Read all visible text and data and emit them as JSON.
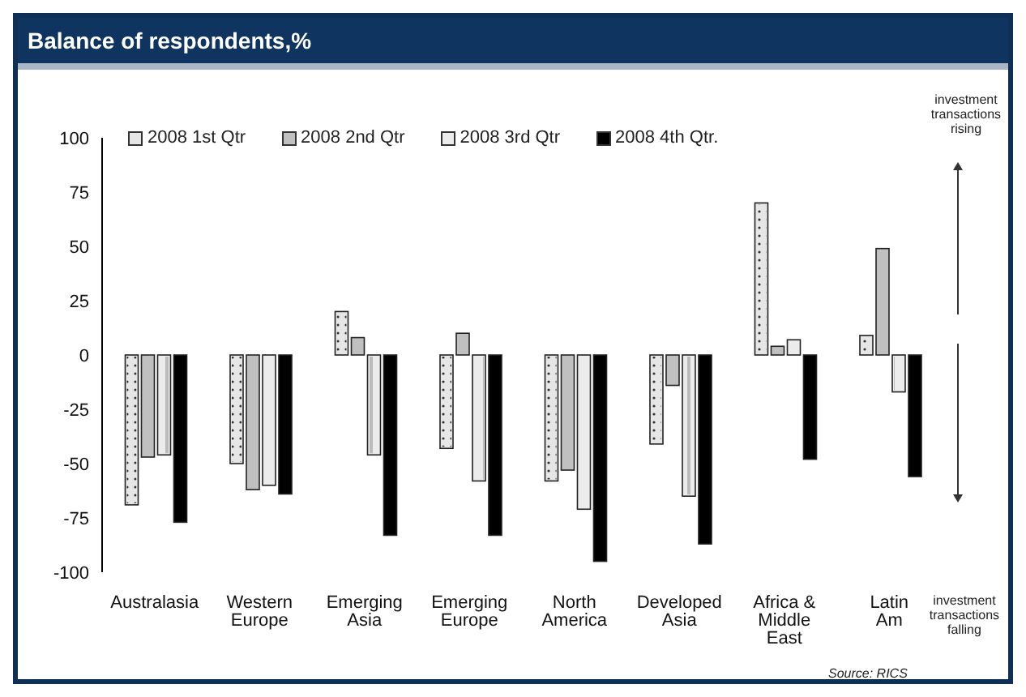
{
  "chart_data": {
    "type": "bar",
    "title": "Balance of respondents,%",
    "categories": [
      "Australasia",
      "Western Europe",
      "Emerging Asia",
      "Emerging Europe",
      "North America",
      "Developed Asia",
      "Africa & Middle East",
      "Latin Am"
    ],
    "series": [
      {
        "name": "2008 1st Qtr",
        "color": "#e6e6e6",
        "values": [
          -69,
          -50,
          20,
          -43,
          -58,
          -41,
          70,
          9
        ]
      },
      {
        "name": "2008 2nd Qtr",
        "color": "#c0c0c0",
        "values": [
          -47,
          -62,
          8,
          10,
          -53,
          -14,
          4,
          49
        ]
      },
      {
        "name": "2008 3rd Qtr",
        "color": "#ececec",
        "values": [
          -46,
          -60,
          -46,
          -58,
          -71,
          -65,
          7,
          -17
        ]
      },
      {
        "name": "2008 4th Qtr.",
        "color": "#000000",
        "values": [
          -77,
          -64,
          -83,
          -83,
          -95,
          -87,
          -48,
          -56
        ]
      }
    ],
    "ylim": [
      -100,
      100
    ],
    "yticks": [
      -100,
      -75,
      -50,
      -25,
      0,
      25,
      50,
      75,
      100
    ],
    "grid": false,
    "legend": "top",
    "annotations": [
      "investment transactions rising",
      "investment transactions falling",
      "Source: RICS"
    ]
  }
}
